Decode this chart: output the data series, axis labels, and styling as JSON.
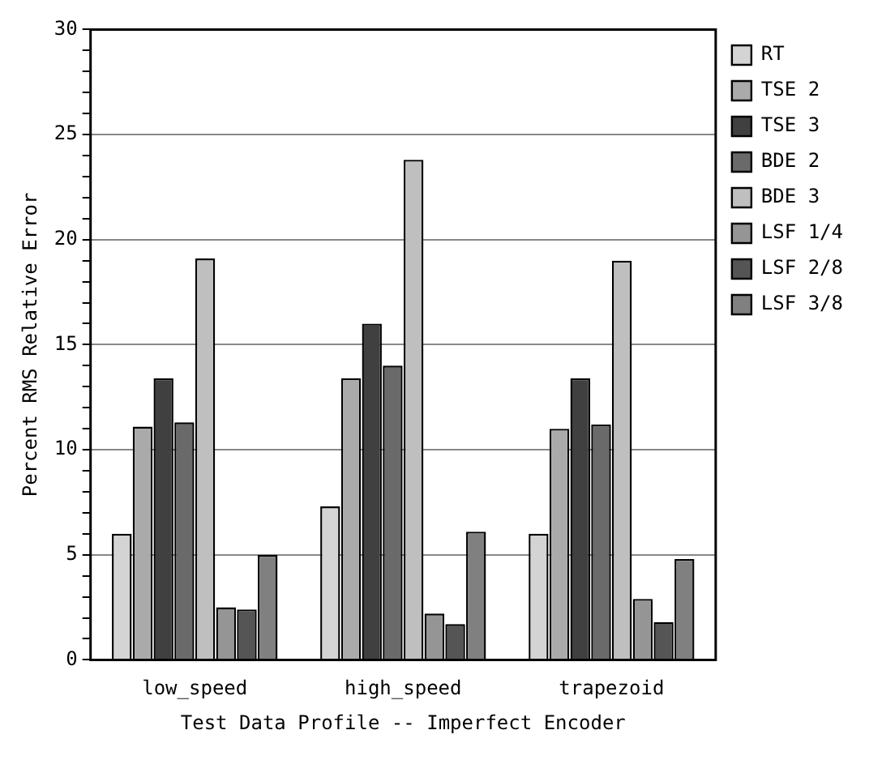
{
  "chart_data": {
    "type": "bar",
    "xlabel": "Test Data Profile -- Imperfect Encoder",
    "ylabel": "Percent RMS Relative Error",
    "categories": [
      "low_speed",
      "high_speed",
      "trapezoid"
    ],
    "series": [
      {
        "name": "RT",
        "color": "#d4d4d4",
        "values": [
          6.0,
          7.3,
          6.0
        ]
      },
      {
        "name": "TSE 2",
        "color": "#aaaaaa",
        "values": [
          11.1,
          13.4,
          11.0
        ]
      },
      {
        "name": "TSE 3",
        "color": "#404040",
        "values": [
          13.4,
          16.0,
          13.4
        ]
      },
      {
        "name": "BDE 2",
        "color": "#6a6a6a",
        "values": [
          11.3,
          14.0,
          11.2
        ]
      },
      {
        "name": "BDE 3",
        "color": "#bfbfbf",
        "values": [
          19.1,
          23.8,
          19.0
        ]
      },
      {
        "name": "LSF 1/4",
        "color": "#959595",
        "values": [
          2.5,
          2.2,
          2.9
        ]
      },
      {
        "name": "LSF 2/8",
        "color": "#555555",
        "values": [
          2.4,
          1.7,
          1.8
        ]
      },
      {
        "name": "LSF 3/8",
        "color": "#808080",
        "values": [
          5.0,
          6.1,
          4.8
        ]
      }
    ],
    "ylim": [
      0,
      30
    ],
    "yticks": [
      0,
      {
        "value": 1,
        "label": null
      },
      {
        "value": 2,
        "label": null
      },
      {
        "value": 3,
        "label": null
      },
      {
        "value": 4,
        "label": null
      },
      5,
      {
        "value": 6,
        "label": null
      },
      {
        "value": 7,
        "label": null
      },
      {
        "value": 8,
        "label": null
      },
      {
        "value": 9,
        "label": null
      },
      10,
      {
        "value": 11,
        "label": null
      },
      {
        "value": 12,
        "label": null
      },
      {
        "value": 13,
        "label": null
      },
      {
        "value": 14,
        "label": null
      },
      15,
      {
        "value": 16,
        "label": null
      },
      {
        "value": 17,
        "label": null
      },
      {
        "value": 18,
        "label": null
      },
      {
        "value": 19,
        "label": null
      },
      20,
      {
        "value": 21,
        "label": null
      },
      {
        "value": 22,
        "label": null
      },
      {
        "value": 23,
        "label": null
      },
      {
        "value": 24,
        "label": null
      },
      25,
      {
        "value": 26,
        "label": null
      },
      {
        "value": 27,
        "label": null
      },
      {
        "value": 28,
        "label": null
      },
      {
        "value": 29,
        "label": null
      },
      30
    ],
    "grid": "y",
    "legend": "right"
  }
}
